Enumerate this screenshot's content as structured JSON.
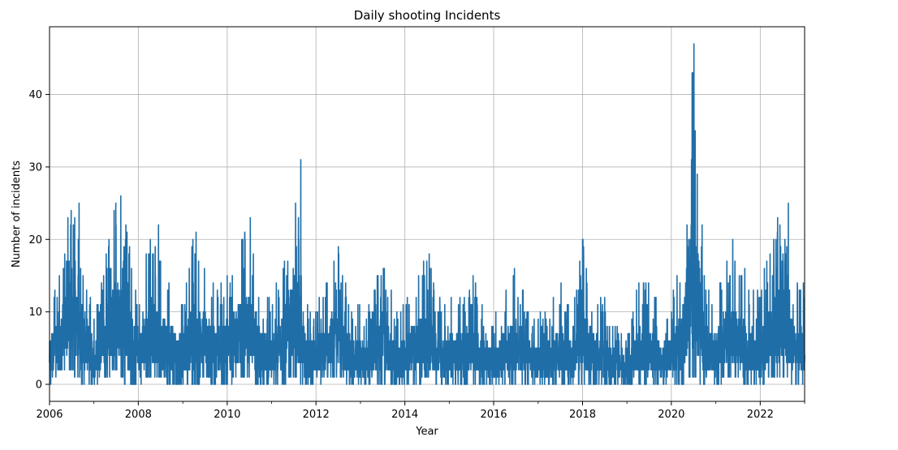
{
  "chart_data": {
    "type": "line",
    "title": "Daily shooting Incidents",
    "xlabel": "Year",
    "ylabel": "Number of incidents",
    "xlim": [
      "2006-01-01",
      "2023-01-01"
    ],
    "ylim": [
      -2.35,
      49.35
    ],
    "grid": true,
    "x_ticks": [
      "2006",
      "2008",
      "2010",
      "2012",
      "2014",
      "2016",
      "2018",
      "2020",
      "2022"
    ],
    "y_ticks": [
      "0",
      "10",
      "20",
      "30",
      "40"
    ],
    "color": "#1f6ea8",
    "daily_max_by_quarter": {
      "x": [
        "2006-01-01",
        "2006-04-01",
        "2006-07-01",
        "2006-10-01",
        "2007-01-01",
        "2007-04-01",
        "2007-07-01",
        "2007-10-01",
        "2008-01-01",
        "2008-04-01",
        "2008-07-01",
        "2008-10-01",
        "2009-01-01",
        "2009-04-01",
        "2009-07-01",
        "2009-10-01",
        "2010-01-01",
        "2010-04-01",
        "2010-07-01",
        "2010-10-01",
        "2011-01-01",
        "2011-04-01",
        "2011-07-01",
        "2011-10-01",
        "2012-01-01",
        "2012-04-01",
        "2012-07-01",
        "2012-10-01",
        "2013-01-01",
        "2013-04-01",
        "2013-07-01",
        "2013-10-01",
        "2014-01-01",
        "2014-04-01",
        "2014-07-01",
        "2014-10-01",
        "2015-01-01",
        "2015-04-01",
        "2015-07-01",
        "2015-10-01",
        "2016-01-01",
        "2016-04-01",
        "2016-07-01",
        "2016-10-01",
        "2017-01-01",
        "2017-04-01",
        "2017-07-01",
        "2017-10-01",
        "2018-01-01",
        "2018-04-01",
        "2018-07-01",
        "2018-10-01",
        "2019-01-01",
        "2019-04-01",
        "2019-07-01",
        "2019-10-01",
        "2020-01-01",
        "2020-04-01",
        "2020-07-01",
        "2020-10-01",
        "2021-01-01",
        "2021-04-01",
        "2021-07-01",
        "2021-10-01",
        "2022-01-01",
        "2022-04-01",
        "2022-07-01",
        "2022-10-01"
      ],
      "y": [
        11,
        18,
        25,
        20,
        11,
        18,
        26,
        22,
        11,
        22,
        17,
        15,
        13,
        21,
        17,
        14,
        16,
        20,
        23,
        14,
        12,
        18,
        31,
        13,
        11,
        16,
        19,
        13,
        11,
        11,
        19,
        12,
        12,
        16,
        18,
        12,
        12,
        14,
        16,
        12,
        9,
        13,
        17,
        11,
        10,
        11,
        15,
        10,
        20,
        13,
        12,
        8,
        7,
        14,
        15,
        11,
        11,
        21,
        47,
        15,
        13,
        20,
        17,
        15,
        13,
        21,
        25,
        15
      ]
    },
    "daily_min_by_quarter": {
      "x": [
        "2006-01-01",
        "2006-04-01",
        "2006-07-01",
        "2006-10-01",
        "2007-01-01",
        "2007-04-01",
        "2007-07-01",
        "2007-10-01",
        "2008-01-01",
        "2008-04-01",
        "2008-07-01",
        "2008-10-01",
        "2009-01-01",
        "2009-04-01",
        "2009-07-01",
        "2009-10-01",
        "2010-01-01",
        "2010-04-01",
        "2010-07-01",
        "2010-10-01",
        "2011-01-01",
        "2011-04-01",
        "2011-07-01",
        "2011-10-01",
        "2012-01-01",
        "2012-04-01",
        "2012-07-01",
        "2012-10-01",
        "2013-01-01",
        "2013-04-01",
        "2013-07-01",
        "2013-10-01",
        "2014-01-01",
        "2014-04-01",
        "2014-07-01",
        "2014-10-01",
        "2015-01-01",
        "2015-04-01",
        "2015-07-01",
        "2015-10-01",
        "2016-01-01",
        "2016-04-01",
        "2016-07-01",
        "2016-10-01",
        "2017-01-01",
        "2017-04-01",
        "2017-07-01",
        "2017-10-01",
        "2018-01-01",
        "2018-04-01",
        "2018-07-01",
        "2018-10-01",
        "2019-01-01",
        "2019-04-01",
        "2019-07-01",
        "2019-10-01",
        "2020-01-01",
        "2020-04-01",
        "2020-07-01",
        "2020-10-01",
        "2021-01-01",
        "2021-04-01",
        "2021-07-01",
        "2021-10-01",
        "2022-01-01",
        "2022-04-01",
        "2022-07-01",
        "2022-10-01"
      ],
      "y": [
        0,
        2,
        2,
        0,
        0,
        1,
        2,
        0,
        0,
        1,
        1,
        0,
        0,
        0,
        1,
        0,
        0,
        1,
        1,
        0,
        0,
        0,
        1,
        0,
        0,
        1,
        1,
        0,
        0,
        0,
        0,
        0,
        0,
        0,
        1,
        0,
        0,
        0,
        0,
        0,
        0,
        0,
        0,
        0,
        0,
        0,
        0,
        0,
        0,
        0,
        0,
        0,
        0,
        0,
        0,
        0,
        0,
        0,
        1,
        0,
        0,
        1,
        1,
        0,
        0,
        1,
        1,
        0
      ]
    },
    "peaks": [
      {
        "x": "2006-09-01",
        "y": 25
      },
      {
        "x": "2007-08-10",
        "y": 26
      },
      {
        "x": "2008-06-15",
        "y": 22
      },
      {
        "x": "2009-04-20",
        "y": 21
      },
      {
        "x": "2010-07-10",
        "y": 23
      },
      {
        "x": "2011-08-29",
        "y": 31
      },
      {
        "x": "2014-07-20",
        "y": 18
      },
      {
        "x": "2018-01-01",
        "y": 20
      },
      {
        "x": "2020-07-05",
        "y": 47
      },
      {
        "x": "2020-08-01",
        "y": 29
      },
      {
        "x": "2021-05-20",
        "y": 20
      },
      {
        "x": "2022-08-20",
        "y": 25
      }
    ]
  }
}
